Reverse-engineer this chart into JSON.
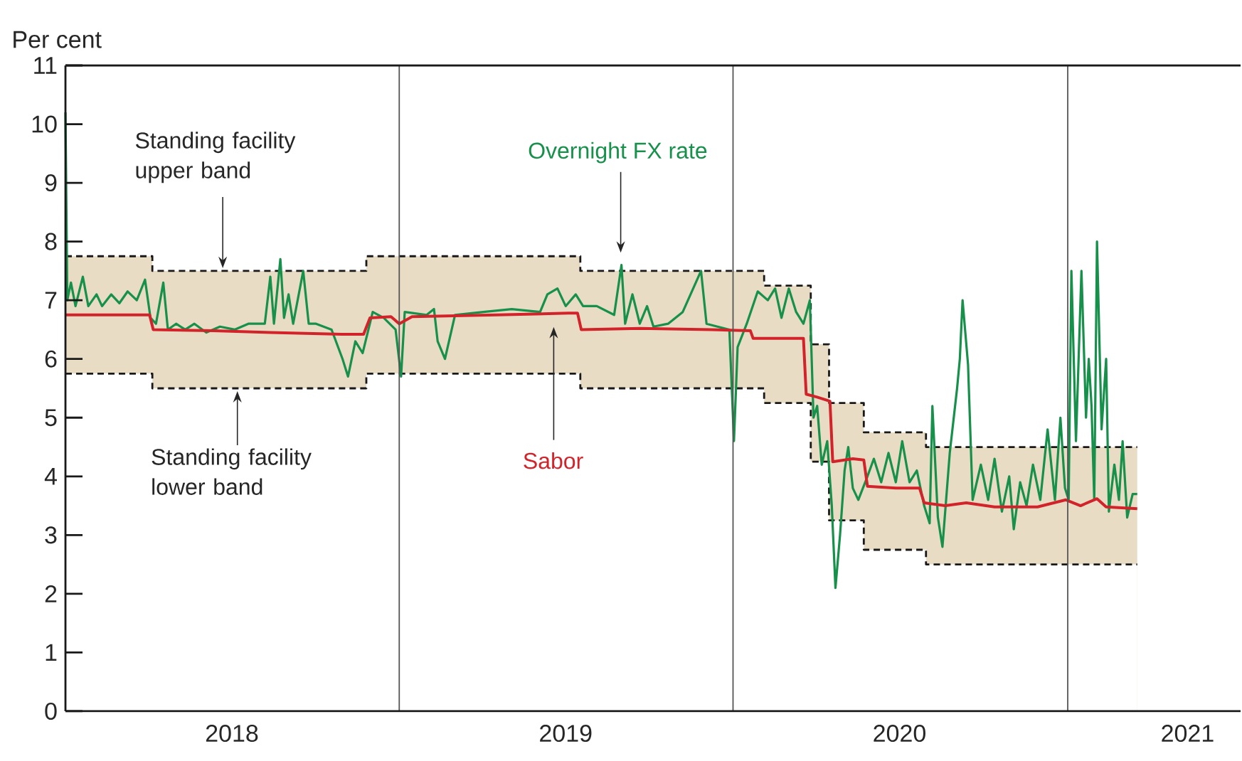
{
  "chart_data": {
    "type": "line",
    "ylabel": "Per cent",
    "xlim": [
      "2018-01-01",
      "2021-07-09"
    ],
    "ylim": [
      0,
      11
    ],
    "yticks": [
      0,
      1,
      2,
      3,
      4,
      5,
      6,
      7,
      8,
      9,
      10,
      11
    ],
    "xticks": [
      {
        "value": "2018-07-02",
        "label": "2018"
      },
      {
        "value": "2019-07-02",
        "label": "2019"
      },
      {
        "value": "2020-07-01",
        "label": "2020"
      },
      {
        "value": "2021-05-12",
        "label": "2021"
      }
    ],
    "ref_lines": [
      {
        "axis": "x",
        "value": "2019-01-01",
        "color": "#555555"
      },
      {
        "axis": "x",
        "value": "2020-01-01",
        "color": "#555555"
      },
      {
        "axis": "x",
        "value": "2021-01-01",
        "color": "#555555"
      }
    ],
    "annotations": [
      {
        "text": "Standing facility upper band",
        "x": "2018-06-22",
        "y": 7.5
      },
      {
        "text": "Standing facility lower band",
        "x": "2018-07-08",
        "y": 5.5
      }
    ],
    "series": [
      {
        "type": "area",
        "color": "#e9dcc5",
        "line_style": "dashed",
        "x": [
          "2018-01-01",
          "2018-04-06",
          "2018-04-06",
          "2018-11-26",
          "2018-11-26",
          "2019-07-18",
          "2019-07-18",
          "2020-02-04",
          "2020-02-04",
          "2020-03-26",
          "2020-03-26",
          "2020-04-15",
          "2020-04-15",
          "2020-05-23",
          "2020-05-23",
          "2020-07-30",
          "2020-07-30",
          "2021-03-18"
        ],
        "values": [
          7.75,
          7.75,
          7.5,
          7.5,
          7.75,
          7.75,
          7.5,
          7.5,
          7.25,
          7.25,
          6.25,
          6.25,
          5.25,
          5.25,
          4.75,
          4.75,
          4.5,
          4.5
        ]
      },
      {
        "type": "area",
        "color": "#ffffff",
        "line_style": "dashed",
        "x": [
          "2018-01-01",
          "2018-04-06",
          "2018-04-06",
          "2018-11-26",
          "2018-11-26",
          "2019-07-18",
          "2019-07-18",
          "2020-02-04",
          "2020-02-04",
          "2020-03-26",
          "2020-03-26",
          "2020-04-15",
          "2020-04-15",
          "2020-05-23",
          "2020-05-23",
          "2020-07-30",
          "2020-07-30",
          "2021-03-18"
        ],
        "values": [
          5.75,
          5.75,
          5.5,
          5.5,
          5.75,
          5.75,
          5.5,
          5.5,
          5.25,
          5.25,
          4.25,
          4.25,
          3.25,
          3.25,
          2.75,
          2.75,
          2.5,
          2.5
        ]
      },
      {
        "name": "Overnight FX rate",
        "color": "#16904a",
        "x": [
          "2018-01-01",
          "2018-01-03",
          "2018-01-07",
          "2018-01-12",
          "2018-01-20",
          "2018-01-26",
          "2018-02-04",
          "2018-02-10",
          "2018-02-20",
          "2018-03-01",
          "2018-03-10",
          "2018-03-20",
          "2018-03-29",
          "2018-04-04",
          "2018-04-10",
          "2018-04-18",
          "2018-04-23",
          "2018-05-02",
          "2018-05-12",
          "2018-05-22",
          "2018-06-04",
          "2018-06-19",
          "2018-07-05",
          "2018-07-20",
          "2018-08-07",
          "2018-08-13",
          "2018-08-17",
          "2018-08-24",
          "2018-08-28",
          "2018-09-02",
          "2018-09-07",
          "2018-09-18",
          "2018-09-24",
          "2018-10-02",
          "2018-10-19",
          "2018-10-31",
          "2018-11-06",
          "2018-11-14",
          "2018-11-22",
          "2018-12-03",
          "2018-12-15",
          "2018-12-28",
          "2019-01-03",
          "2019-01-07",
          "2019-01-31",
          "2019-02-08",
          "2019-02-12",
          "2019-02-20",
          "2019-03-03",
          "2019-04-03",
          "2019-05-04",
          "2019-06-04",
          "2019-06-12",
          "2019-06-23",
          "2019-07-02",
          "2019-07-13",
          "2019-07-21",
          "2019-08-05",
          "2019-08-24",
          "2019-09-01",
          "2019-09-05",
          "2019-09-13",
          "2019-09-21",
          "2019-09-29",
          "2019-10-06",
          "2019-10-22",
          "2019-11-07",
          "2019-11-27",
          "2019-12-03",
          "2019-12-15",
          "2019-12-28",
          "2020-01-02",
          "2020-01-06",
          "2020-01-16",
          "2020-01-28",
          "2020-02-08",
          "2020-02-16",
          "2020-02-23",
          "2020-03-02",
          "2020-03-10",
          "2020-03-18",
          "2020-03-25",
          "2020-03-29",
          "2020-04-02",
          "2020-04-07",
          "2020-04-13",
          "2020-04-18",
          "2020-04-22",
          "2020-04-27",
          "2020-05-02",
          "2020-05-06",
          "2020-05-11",
          "2020-05-17",
          "2020-05-27",
          "2020-06-03",
          "2020-06-11",
          "2020-06-19",
          "2020-06-27",
          "2020-07-04",
          "2020-07-12",
          "2020-07-20",
          "2020-07-28",
          "2020-08-03",
          "2020-08-06",
          "2020-08-12",
          "2020-08-17",
          "2020-08-25",
          "2020-09-02",
          "2020-09-05",
          "2020-09-08",
          "2020-09-14",
          "2020-09-19",
          "2020-09-28",
          "2020-10-06",
          "2020-10-13",
          "2020-10-21",
          "2020-10-29",
          "2020-11-03",
          "2020-11-10",
          "2020-11-17",
          "2020-11-24",
          "2020-12-02",
          "2020-12-10",
          "2020-12-18",
          "2020-12-24",
          "2020-12-29",
          "2021-01-02",
          "2021-01-05",
          "2021-01-10",
          "2021-01-16",
          "2021-01-21",
          "2021-01-24",
          "2021-01-27",
          "2021-01-30",
          "2021-02-02",
          "2021-02-07",
          "2021-02-12",
          "2021-02-15",
          "2021-02-21",
          "2021-02-26",
          "2021-03-02",
          "2021-03-07",
          "2021-03-13",
          "2021-03-18"
        ],
        "values": [
          10.2,
          7.0,
          7.3,
          6.9,
          7.4,
          6.9,
          7.1,
          6.9,
          7.1,
          6.95,
          7.15,
          7.0,
          7.35,
          6.7,
          6.6,
          7.3,
          6.5,
          6.6,
          6.5,
          6.6,
          6.45,
          6.55,
          6.5,
          6.6,
          6.6,
          7.4,
          6.6,
          7.7,
          6.7,
          7.1,
          6.6,
          7.5,
          6.6,
          6.6,
          6.5,
          6.0,
          5.7,
          6.3,
          6.1,
          6.8,
          6.7,
          6.5,
          5.7,
          6.8,
          6.75,
          6.85,
          6.3,
          6.0,
          6.75,
          6.8,
          6.85,
          6.8,
          7.1,
          7.2,
          6.9,
          7.1,
          6.9,
          6.9,
          6.75,
          7.6,
          6.6,
          7.1,
          6.6,
          6.9,
          6.55,
          6.6,
          6.8,
          7.5,
          6.6,
          6.55,
          6.5,
          4.6,
          6.2,
          6.6,
          7.15,
          7.0,
          7.2,
          6.7,
          7.2,
          6.8,
          6.6,
          7.0,
          5.0,
          5.2,
          4.2,
          4.6,
          3.5,
          2.1,
          3.0,
          4.1,
          4.5,
          3.8,
          3.6,
          4.0,
          4.3,
          3.9,
          4.4,
          3.9,
          4.6,
          3.9,
          4.1,
          3.5,
          3.2,
          5.2,
          3.3,
          2.8,
          4.4,
          5.5,
          6.0,
          7.0,
          5.9,
          3.6,
          4.2,
          3.6,
          4.3,
          3.4,
          4.0,
          3.1,
          3.9,
          3.5,
          4.2,
          3.6,
          4.8,
          3.6,
          5.0,
          3.8,
          3.6,
          7.5,
          4.6,
          7.5,
          5.0,
          6.0,
          5.2,
          3.6,
          8.0,
          4.8,
          6.0,
          3.4,
          4.2,
          3.6,
          4.6,
          3.3,
          3.7,
          3.7
        ]
      },
      {
        "name": "Sabor",
        "color": "#d2232a",
        "x": [
          "2018-01-01",
          "2018-04-03",
          "2018-04-07",
          "2018-06-12",
          "2018-08-13",
          "2018-10-30",
          "2018-11-23",
          "2018-11-30",
          "2018-12-23",
          "2019-01-01",
          "2019-01-15",
          "2019-04-18",
          "2019-07-05",
          "2019-07-15",
          "2019-07-19",
          "2019-09-21",
          "2019-12-08",
          "2020-01-20",
          "2020-01-23",
          "2020-03-18",
          "2020-03-21",
          "2020-04-02",
          "2020-04-16",
          "2020-04-19",
          "2020-05-11",
          "2020-05-23",
          "2020-05-27",
          "2020-06-27",
          "2020-07-23",
          "2020-07-28",
          "2020-08-20",
          "2020-09-12",
          "2020-10-13",
          "2020-11-29",
          "2020-12-30",
          "2021-01-15",
          "2021-02-02",
          "2021-02-12",
          "2021-03-18"
        ],
        "values": [
          6.75,
          6.75,
          6.5,
          6.48,
          6.45,
          6.42,
          6.42,
          6.7,
          6.72,
          6.6,
          6.72,
          6.75,
          6.78,
          6.78,
          6.5,
          6.52,
          6.5,
          6.48,
          6.35,
          6.35,
          5.4,
          5.35,
          5.28,
          4.25,
          4.3,
          4.28,
          3.83,
          3.8,
          3.8,
          3.55,
          3.5,
          3.55,
          3.48,
          3.48,
          3.6,
          3.5,
          3.62,
          3.48,
          3.45
        ]
      }
    ]
  }
}
